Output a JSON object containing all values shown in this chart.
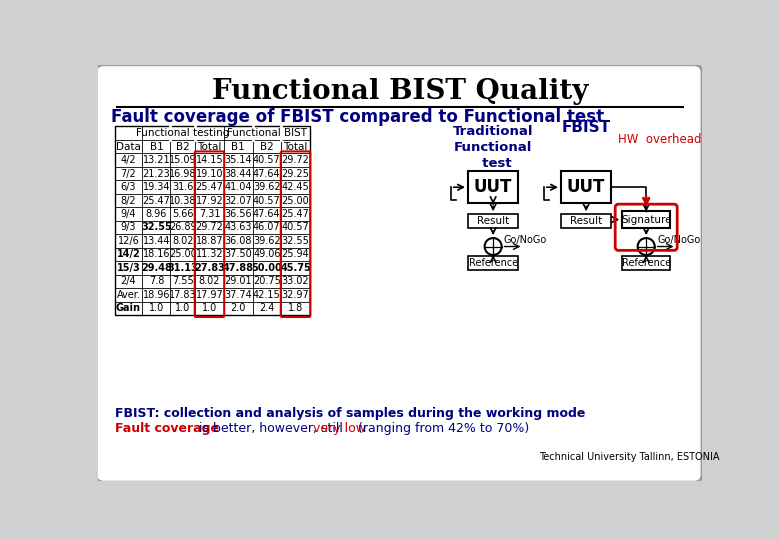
{
  "title": "Functional BIST Quality",
  "subtitle": "Fault coverage of FBIST compared to Functional test",
  "table_headers_row2": [
    "Data",
    "B1",
    "B2",
    "Total",
    "B1",
    "B2",
    "Total"
  ],
  "table_data": [
    [
      "4/2",
      "13.21",
      "15.09",
      "14.15",
      "35.14",
      "40.57",
      "29.72"
    ],
    [
      "7/2",
      "21.23",
      "16.98",
      "19.10",
      "38.44",
      "47.64",
      "29.25"
    ],
    [
      "6/3",
      "19.34",
      "31.6",
      "25.47",
      "41.04",
      "39.62",
      "42.45"
    ],
    [
      "8/2",
      "25.47",
      "10.38",
      "17.92",
      "32.07",
      "40.57",
      "25.00"
    ],
    [
      "9/4",
      "8.96",
      "5.66",
      "7.31",
      "36.56",
      "47.64",
      "25.47"
    ],
    [
      "9/3",
      "32.55",
      "26.89",
      "29.72",
      "43.63",
      "46.07",
      "40.57"
    ],
    [
      "12/6",
      "13.44",
      "8.02",
      "18.87",
      "36.08",
      "39.62",
      "32.55"
    ],
    [
      "14/2",
      "18.16",
      "25.00",
      "11.32",
      "37.50",
      "49.06",
      "25.94"
    ],
    [
      "15/3",
      "29.48",
      "31.13",
      "27.83",
      "47.88",
      "50.00",
      "45.75"
    ],
    [
      "2/4",
      "7.8",
      "7.55",
      "8.02",
      "29.01",
      "20.75",
      "33.02"
    ],
    [
      "Aver.",
      "18.96",
      "17.83",
      "17.97",
      "37.74",
      "42.15",
      "32.97"
    ],
    [
      "Gain",
      "1.0",
      "1.0",
      "1.0",
      "2.0",
      "2.4",
      "1.8"
    ]
  ],
  "bold_rows_cols": [
    [
      5,
      1
    ],
    [
      8,
      1
    ],
    [
      8,
      2
    ],
    [
      8,
      3
    ],
    [
      8,
      4
    ],
    [
      8,
      5
    ],
    [
      8,
      6
    ],
    [
      7,
      0
    ],
    [
      8,
      0
    ],
    [
      11,
      0
    ]
  ],
  "footer_line1": "FBIST: collection and analysis of samples during the working mode",
  "footer_line1_color": "#000080",
  "footer_line2_parts": [
    {
      "text": "Fault coverage",
      "color": "#cc0000",
      "bold": true
    },
    {
      "text": " is better, however, still ",
      "color": "#000080",
      "bold": false
    },
    {
      "text": "very low",
      "color": "#cc0000",
      "bold": false
    },
    {
      "text": " (ranging from 42% to 70%)",
      "color": "#000080",
      "bold": false
    }
  ],
  "slide_bg": "#ffffff",
  "slide_edge": "#aaaaaa"
}
